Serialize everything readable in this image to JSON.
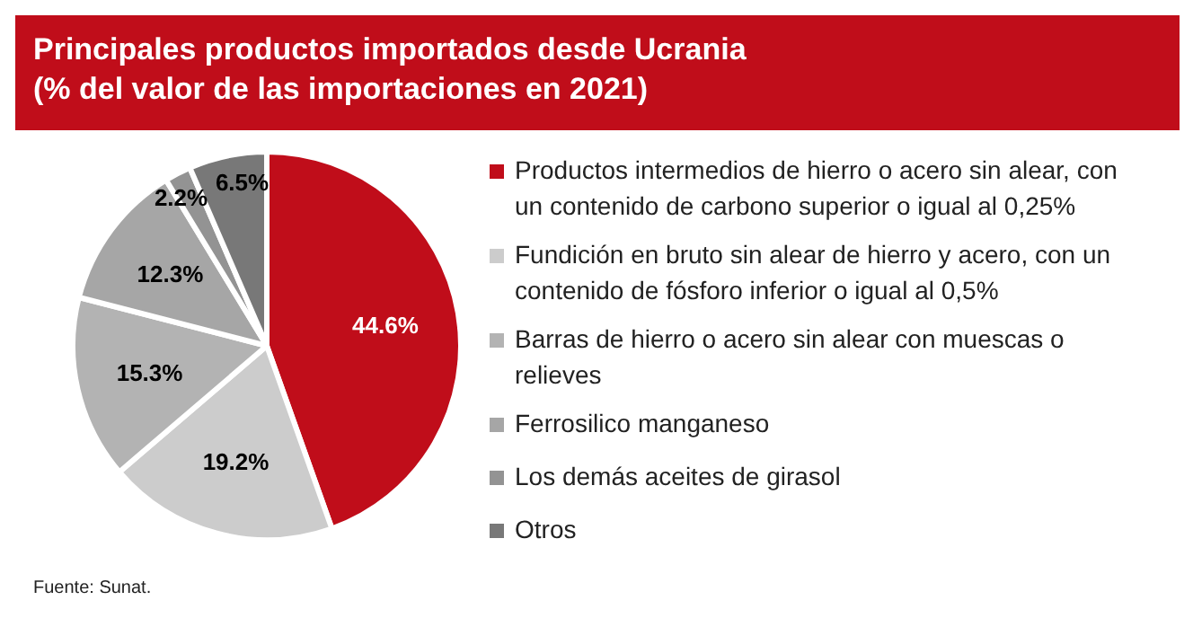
{
  "chart_data": {
    "type": "pie",
    "title": "Principales productos importados desde Ucrania",
    "subtitle": "(% del valor de las importaciones en 2021)",
    "categories": [
      "Productos intermedios de hierro o acero sin alear, con un contenido de carbono superior o igual al 0,25%",
      "Fundición en bruto sin alear de hierro y acero, con un contenido de fósforo inferior o igual al 0,5%",
      "Barras de hierro o acero sin alear con muescas o relieves",
      "Ferrosilico manganeso",
      "Los demás aceites de girasol",
      "Otros"
    ],
    "values": [
      44.6,
      19.2,
      15.3,
      12.3,
      2.2,
      6.5
    ],
    "colors": [
      "#c00d1a",
      "#cccccc",
      "#b3b3b3",
      "#a6a6a6",
      "#939393",
      "#787878"
    ],
    "value_labels": [
      "44.6%",
      "19.2%",
      "15.3%",
      "12.3%",
      "2.2%",
      "6.5%"
    ],
    "legend": "right",
    "annotations": [
      "Fuente: Sunat."
    ]
  }
}
